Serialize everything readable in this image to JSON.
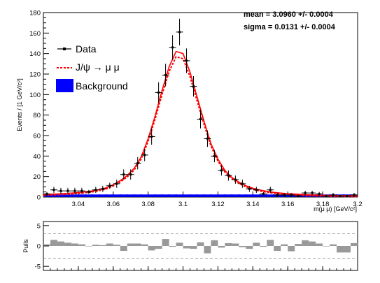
{
  "stats": {
    "mean": "mean =  3.0960 +/- 0.0004",
    "sigma": "sigma =  0.0131 +/- 0.0004"
  },
  "legend": {
    "data": "Data",
    "signal": "J/ψ  →  μ μ",
    "background": "Background"
  },
  "colors": {
    "data": "#000000",
    "model": "#ff0000",
    "background": "#0000ff",
    "pulls": "#999999"
  },
  "chart_data": [
    {
      "type": "scatter",
      "xlabel": "m(μ μ) [GeV/c²]",
      "ylabel": "Events / [1 GeV/c²]",
      "xlim": [
        3.02,
        3.2
      ],
      "ylim": [
        0,
        180
      ],
      "xticks": [
        "3.04",
        "3.06",
        "3.08",
        "3.1",
        "3.12",
        "3.14",
        "3.16",
        "3.18",
        "3.2"
      ],
      "yticks": [
        "0",
        "20",
        "40",
        "60",
        "80",
        "100",
        "120",
        "140",
        "160",
        "180"
      ],
      "series": [
        {
          "name": "Data",
          "x": [
            3.022,
            3.026,
            3.03,
            3.034,
            3.038,
            3.042,
            3.046,
            3.05,
            3.054,
            3.058,
            3.062,
            3.066,
            3.07,
            3.074,
            3.078,
            3.082,
            3.086,
            3.09,
            3.094,
            3.098,
            3.102,
            3.106,
            3.11,
            3.114,
            3.118,
            3.122,
            3.126,
            3.13,
            3.134,
            3.138,
            3.142,
            3.146,
            3.15,
            3.154,
            3.158,
            3.162,
            3.166,
            3.17,
            3.174,
            3.178,
            3.182,
            3.186,
            3.19,
            3.194,
            3.198
          ],
          "y": [
            3,
            7,
            6,
            6,
            6,
            6,
            5,
            7,
            8,
            11,
            13,
            22,
            22,
            33,
            41,
            59,
            102,
            119,
            146,
            161,
            133,
            108,
            76,
            57,
            40,
            26,
            21,
            17,
            13,
            8,
            7,
            3,
            7,
            2,
            2,
            2,
            1,
            4,
            4,
            3,
            1,
            2,
            1,
            1,
            2
          ],
          "yerr": [
            2,
            3,
            3,
            3,
            3,
            3,
            2,
            3,
            3,
            3,
            4,
            5,
            5,
            6,
            6,
            8,
            10,
            11,
            12,
            13,
            12,
            10,
            9,
            8,
            6,
            5,
            5,
            4,
            4,
            3,
            3,
            2,
            3,
            2,
            2,
            2,
            1,
            2,
            2,
            2,
            1,
            2,
            1,
            1,
            2
          ]
        },
        {
          "name": "J/ψ  →  μ μ",
          "x": [
            3.02,
            3.024,
            3.028,
            3.032,
            3.036,
            3.04,
            3.044,
            3.048,
            3.052,
            3.056,
            3.06,
            3.064,
            3.068,
            3.072,
            3.076,
            3.08,
            3.084,
            3.088,
            3.092,
            3.096,
            3.1,
            3.104,
            3.108,
            3.112,
            3.116,
            3.12,
            3.124,
            3.128,
            3.132,
            3.136,
            3.14,
            3.144,
            3.148,
            3.152,
            3.156,
            3.16,
            3.164,
            3.168,
            3.172,
            3.176,
            3.18,
            3.184,
            3.188,
            3.192,
            3.196,
            3.2
          ],
          "y": [
            2.5,
            2.8,
            3.1,
            3.5,
            3.9,
            4.4,
            5.1,
            6,
            7.2,
            9,
            12,
            16,
            21,
            28,
            39,
            57,
            79,
            104,
            127,
            142,
            140,
            122,
            98,
            74,
            52,
            37,
            26,
            19,
            14.5,
            11,
            8.6,
            6.9,
            5.6,
            4.6,
            3.9,
            3.3,
            2.9,
            2.5,
            2.2,
            2,
            1.8,
            1.6,
            1.5,
            1.4,
            1.3,
            1.2
          ]
        },
        {
          "name": "Background",
          "x": [
            3.02,
            3.2
          ],
          "y": [
            1.5,
            1.2
          ]
        }
      ]
    },
    {
      "type": "bar",
      "ylabel": "Pulls",
      "ylim": [
        -6,
        6
      ],
      "yticks": [
        "5",
        "0",
        "-5"
      ],
      "dashed_levels": [
        3,
        -3
      ],
      "x": [
        3.022,
        3.026,
        3.03,
        3.034,
        3.038,
        3.042,
        3.046,
        3.05,
        3.054,
        3.058,
        3.062,
        3.066,
        3.07,
        3.074,
        3.078,
        3.082,
        3.086,
        3.09,
        3.094,
        3.098,
        3.102,
        3.106,
        3.11,
        3.114,
        3.118,
        3.122,
        3.126,
        3.13,
        3.134,
        3.138,
        3.142,
        3.146,
        3.15,
        3.154,
        3.158,
        3.162,
        3.166,
        3.17,
        3.174,
        3.178,
        3.182,
        3.186,
        3.19,
        3.194,
        3.198
      ],
      "values": [
        0.4,
        1.5,
        1.1,
        0.8,
        0.6,
        0.4,
        -0.1,
        0.3,
        0.2,
        0.6,
        0.3,
        -1.2,
        0.6,
        0.6,
        0.4,
        -1.1,
        -0.7,
        1.7,
        -0.2,
        0.8,
        -0.6,
        -0.7,
        0.9,
        -1.8,
        1.4,
        -0.4,
        0.7,
        0.6,
        -0.3,
        -0.7,
        0.8,
        -0.2,
        1.5,
        -1.2,
        0.4,
        -1.3,
        0.5,
        1.4,
        1.1,
        0.6,
        -0.1,
        0.4,
        -1.6,
        -1.6,
        0.7
      ]
    }
  ]
}
